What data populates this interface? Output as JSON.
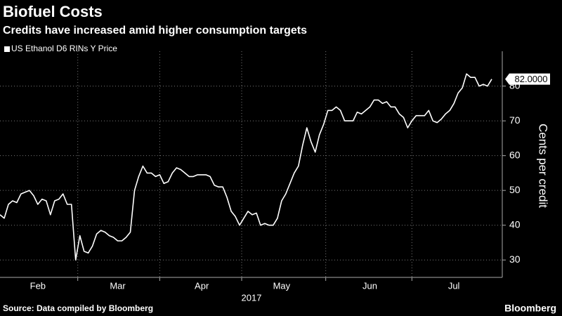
{
  "chart_data": {
    "type": "line",
    "title": "Biofuel Costs",
    "subtitle": "Credits have increased amid higher consumption targets",
    "ylabel": "Cents per credit",
    "xlabel": "2017",
    "source": "Source: Data compiled by Bloomberg",
    "brand": "Bloomberg",
    "categories": [
      null,
      null,
      null,
      null,
      null,
      null,
      null,
      null,
      null,
      "Feb",
      null,
      null,
      null,
      null,
      null,
      null,
      null,
      null,
      null,
      null,
      null,
      null,
      null,
      null,
      null,
      null,
      null,
      null,
      "Mar",
      null,
      null,
      null,
      null,
      null,
      null,
      null,
      null,
      null,
      null,
      null,
      null,
      null,
      null,
      null,
      null,
      null,
      null,
      null,
      "Apr",
      null,
      null,
      null,
      null,
      null,
      null,
      null,
      null,
      null,
      null,
      null,
      null,
      null,
      null,
      null,
      null,
      null,
      null,
      "May",
      null,
      null,
      null,
      null,
      null,
      null,
      null,
      null,
      null,
      null,
      null,
      null,
      null,
      null,
      null,
      null,
      null,
      null,
      null,
      null,
      "Jun",
      null,
      null,
      null,
      null,
      null,
      null,
      null,
      null,
      null,
      null,
      null,
      null,
      null,
      null,
      null,
      null,
      null,
      null,
      null,
      "Jul",
      null,
      null,
      null,
      null,
      null,
      null,
      null,
      null,
      null
    ],
    "series": [
      {
        "name": "US Ethanol D6 RINs Y Price",
        "color": "#ffffff",
        "values": [
          43,
          42,
          46,
          47,
          46.5,
          49,
          49.5,
          50,
          48.5,
          46,
          47.5,
          47,
          43,
          47,
          47.5,
          49,
          46,
          46,
          30,
          37,
          32.5,
          32,
          34,
          37.5,
          38.5,
          38,
          37,
          36.5,
          35.5,
          35.5,
          36.5,
          38,
          50,
          54,
          57,
          55,
          55,
          54,
          54.5,
          52,
          52.5,
          55,
          56.5,
          56,
          55,
          54,
          54,
          54.5,
          54.5,
          54.5,
          54,
          51.5,
          51,
          51,
          48,
          44,
          42.5,
          40,
          42,
          44,
          43,
          43.5,
          40,
          40.5,
          40,
          40,
          42,
          47,
          49,
          52,
          55,
          57,
          63,
          68,
          64,
          61,
          66,
          69,
          73,
          73,
          74,
          73,
          70,
          70,
          70,
          72.5,
          72,
          73,
          74,
          76,
          76,
          75,
          75.5,
          74,
          74,
          72,
          71,
          68,
          70,
          71.5,
          71.5,
          71.5,
          73,
          70,
          69.5,
          70.5,
          72,
          73,
          75,
          78,
          79.5,
          83.5,
          82.5,
          82.5,
          80,
          80.5,
          80,
          82
        ],
        "value_labels": [
          null,
          null,
          null,
          null,
          null,
          null,
          null,
          null,
          null,
          null,
          null,
          null,
          null,
          null,
          null,
          null,
          null,
          null,
          null,
          null,
          null,
          null,
          null,
          null,
          null,
          null,
          null,
          null,
          null,
          null,
          null,
          null,
          null,
          null,
          null,
          null,
          null,
          null,
          null,
          null,
          null,
          null,
          null,
          null,
          null,
          null,
          null,
          null,
          null,
          null,
          null,
          null,
          null,
          null,
          null,
          null,
          null,
          null,
          null,
          null,
          null,
          null,
          null,
          null,
          null,
          null,
          null,
          null,
          null,
          null,
          null,
          null,
          null,
          null,
          null,
          null,
          null,
          null,
          null,
          null,
          null,
          null,
          null,
          null,
          null,
          null,
          null,
          null,
          null,
          null,
          null,
          null,
          null,
          null,
          null,
          null,
          null,
          null,
          null,
          null,
          null,
          null,
          null,
          null,
          null,
          null,
          null,
          null,
          null,
          null,
          null,
          null,
          null,
          null,
          null,
          null,
          null,
          "82.0000"
        ]
      }
    ],
    "ylim": [
      25,
      89
    ],
    "yticks": [
      30,
      40,
      50,
      60,
      70,
      80
    ],
    "grid": true
  }
}
